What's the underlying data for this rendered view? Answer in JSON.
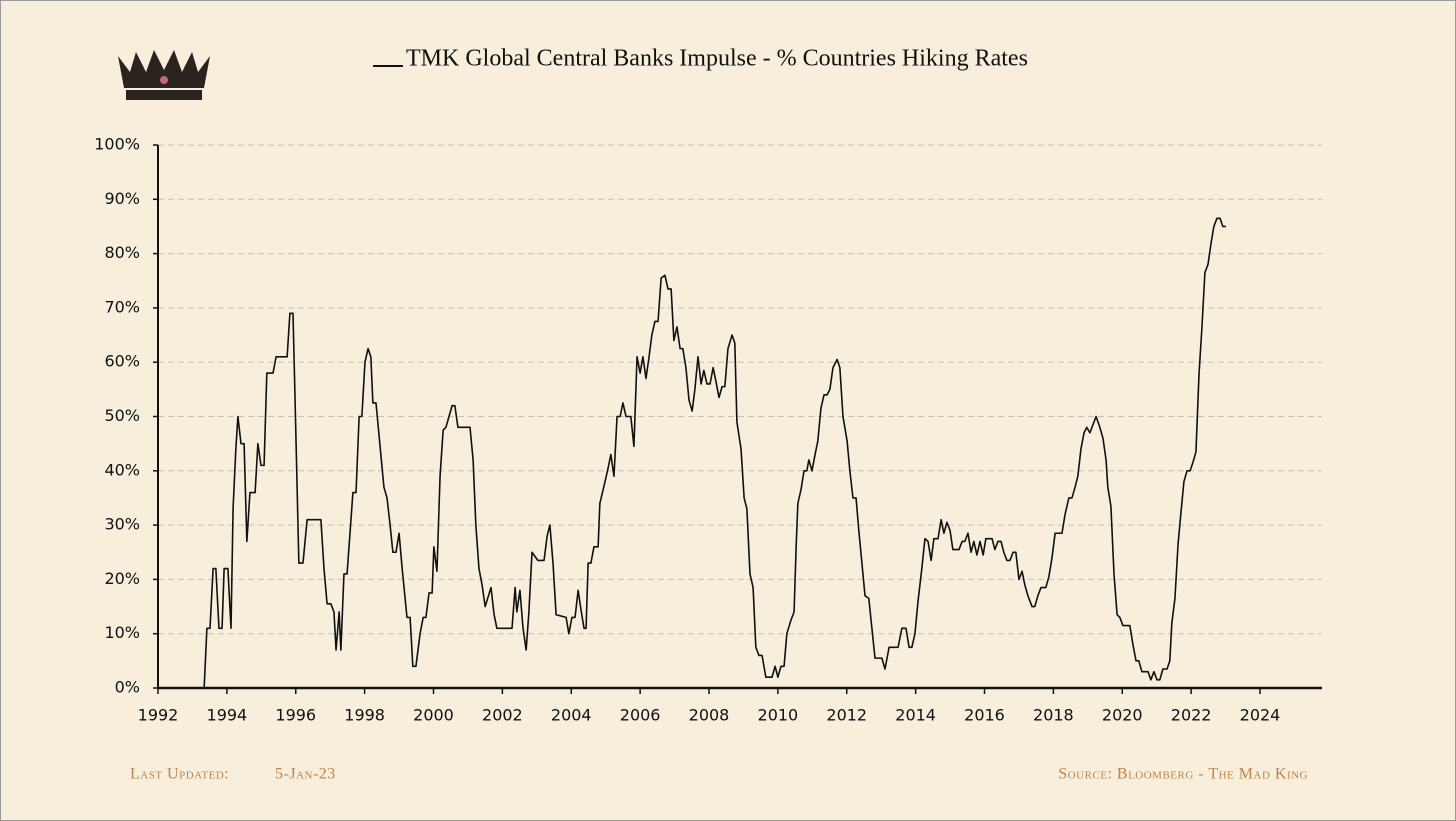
{
  "chart_data": {
    "type": "line",
    "title": "TMK Global Central Banks Impulse - % Countries Hiking Rates",
    "footer_left_label": "Last Updated:",
    "footer_left_value": "5-Jan-23",
    "footer_right": "Source: Bloomberg - The Mad King",
    "xlim": [
      1992,
      2025.8
    ],
    "xticks": [
      1992,
      1994,
      1996,
      1998,
      2000,
      2002,
      2004,
      2006,
      2008,
      2010,
      2012,
      2014,
      2016,
      2018,
      2020,
      2022,
      2024
    ],
    "ylim": [
      0,
      100
    ],
    "yticks": [
      {
        "value": 0,
        "label": "0%"
      },
      {
        "value": 10,
        "label": "10%"
      },
      {
        "value": 20,
        "label": "20%"
      },
      {
        "value": 30,
        "label": "30%"
      },
      {
        "value": 40,
        "label": "40%"
      },
      {
        "value": 50,
        "label": "50%"
      },
      {
        "value": 60,
        "label": "60%"
      },
      {
        "value": 70,
        "label": "70%"
      },
      {
        "value": 80,
        "label": "80%"
      },
      {
        "value": 90,
        "label": "90%"
      },
      {
        "value": 100,
        "label": "100%"
      }
    ],
    "grid": true,
    "x": [
      1993.34,
      1993.42,
      1993.51,
      1993.6,
      1993.68,
      1993.77,
      1993.86,
      1993.92,
      1994.03,
      1994.12,
      1994.18,
      1994.26,
      1994.32,
      1994.41,
      1994.5,
      1994.58,
      1994.67,
      1994.82,
      1994.9,
      1994.99,
      1995.08,
      1995.16,
      1995.34,
      1995.43,
      1995.75,
      1995.83,
      1995.92,
      1996.01,
      1996.09,
      1996.21,
      1996.33,
      1996.73,
      1996.82,
      1996.91,
      1997.02,
      1997.11,
      1997.17,
      1997.26,
      1997.31,
      1997.4,
      1997.49,
      1997.66,
      1997.75,
      1997.84,
      1997.92,
      1998.01,
      1998.1,
      1998.18,
      1998.24,
      1998.33,
      1998.56,
      1998.65,
      1998.74,
      1998.82,
      1998.91,
      1999,
      1999.09,
      1999.23,
      1999.32,
      1999.4,
      1999.49,
      1999.61,
      1999.7,
      1999.78,
      1999.87,
      1999.96,
      2000.01,
      2000.1,
      2000.19,
      2000.28,
      2000.36,
      2000.45,
      2000.54,
      2000.62,
      2000.71,
      2001.06,
      2001.15,
      2001.23,
      2001.32,
      2001.41,
      2001.5,
      2001.67,
      2001.76,
      2001.84,
      2002.28,
      2002.37,
      2002.42,
      2002.51,
      2002.6,
      2002.69,
      2002.77,
      2002.86,
      2003.03,
      2003.21,
      2003.3,
      2003.38,
      2003.47,
      2003.56,
      2003.85,
      2003.93,
      2004.02,
      2004.11,
      2004.2,
      2004.28,
      2004.37,
      2004.43,
      2004.49,
      2004.57,
      2004.66,
      2004.78,
      2004.83,
      2004.98,
      2005.07,
      2005.15,
      2005.24,
      2005.33,
      2005.42,
      2005.5,
      2005.59,
      2005.73,
      2005.82,
      2005.91,
      2006,
      2006.08,
      2006.17,
      2006.26,
      2006.34,
      2006.43,
      2006.52,
      2006.61,
      2006.72,
      2006.81,
      2006.9,
      2006.98,
      2007.07,
      2007.16,
      2007.24,
      2007.33,
      2007.42,
      2007.51,
      2007.59,
      2007.68,
      2007.77,
      2007.85,
      2007.94,
      2008.03,
      2008.12,
      2008.2,
      2008.29,
      2008.38,
      2008.46,
      2008.55,
      2008.67,
      2008.75,
      2008.81,
      2008.93,
      2009.02,
      2009.1,
      2009.19,
      2009.28,
      2009.36,
      2009.45,
      2009.54,
      2009.65,
      2009.83,
      2009.92,
      2010,
      2010.09,
      2010.18,
      2010.26,
      2010.38,
      2010.47,
      2010.53,
      2010.58,
      2010.67,
      2010.76,
      2010.84,
      2010.9,
      2010.99,
      2011.08,
      2011.16,
      2011.25,
      2011.34,
      2011.43,
      2011.51,
      2011.6,
      2011.72,
      2011.8,
      2011.89,
      2012.01,
      2012.09,
      2012.18,
      2012.27,
      2012.35,
      2012.44,
      2012.53,
      2012.64,
      2012.73,
      2012.82,
      2013.02,
      2013.11,
      2013.23,
      2013.49,
      2013.6,
      2013.72,
      2013.81,
      2013.89,
      2013.98,
      2014.07,
      2014.18,
      2014.27,
      2014.36,
      2014.45,
      2014.53,
      2014.65,
      2014.74,
      2014.82,
      2014.91,
      2015,
      2015.08,
      2015.26,
      2015.35,
      2015.43,
      2015.52,
      2015.61,
      2015.69,
      2015.78,
      2015.87,
      2015.96,
      2016.04,
      2016.22,
      2016.3,
      2016.39,
      2016.48,
      2016.56,
      2016.65,
      2016.74,
      2016.83,
      2016.91,
      2017,
      2017.09,
      2017.17,
      2017.26,
      2017.38,
      2017.46,
      2017.55,
      2017.64,
      2017.78,
      2017.87,
      2017.96,
      2018.05,
      2018.25,
      2018.34,
      2018.45,
      2018.54,
      2018.63,
      2018.71,
      2018.8,
      2018.89,
      2018.97,
      2019.06,
      2019.15,
      2019.24,
      2019.35,
      2019.44,
      2019.53,
      2019.58,
      2019.67,
      2019.76,
      2019.85,
      2019.93,
      2020.02,
      2020.22,
      2020.31,
      2020.4,
      2020.48,
      2020.57,
      2020.75,
      2020.83,
      2020.92,
      2021.01,
      2021.09,
      2021.18,
      2021.3,
      2021.38,
      2021.44,
      2021.53,
      2021.62,
      2021.7,
      2021.79,
      2021.88,
      2021.97,
      2022.05,
      2022.14,
      2022.23,
      2022.31,
      2022.4,
      2022.49,
      2022.58,
      2022.66,
      2022.75,
      2022.84,
      2022.92,
      2023.01
    ],
    "series": [
      {
        "name": "TMK Global Central Banks Impulse - % Countries Hiking Rates",
        "color": "#111111",
        "values": [
          0,
          11,
          11,
          22,
          22,
          11,
          11,
          22,
          22,
          11,
          33,
          44,
          50,
          45,
          45,
          27,
          36,
          36,
          45,
          41,
          41,
          58,
          58,
          61,
          61,
          69,
          69,
          45,
          23,
          23,
          31,
          31,
          22,
          15.5,
          15.5,
          14,
          7,
          14,
          7,
          21,
          21,
          36,
          36,
          50,
          50,
          60,
          62.5,
          61,
          52.5,
          52.5,
          37,
          35,
          30,
          25,
          25,
          28.5,
          22,
          13,
          13,
          4,
          4,
          10,
          13,
          13,
          17.5,
          17.5,
          26,
          21.5,
          39,
          47.5,
          48,
          50,
          52,
          52,
          48,
          48,
          42,
          30,
          22,
          19,
          15,
          18.5,
          13.5,
          11,
          11,
          18.5,
          14,
          18,
          11,
          7,
          14,
          25,
          23.5,
          23.5,
          28,
          30,
          23,
          13.5,
          13,
          10,
          13,
          13,
          18,
          14.5,
          11,
          11,
          23,
          23,
          26,
          26,
          34,
          38,
          40.5,
          43,
          39,
          50,
          50,
          52.5,
          50,
          50,
          44.5,
          61,
          58,
          61,
          57,
          61,
          65,
          67.5,
          67.5,
          75.5,
          76,
          73.5,
          73.5,
          64,
          66.5,
          62.5,
          62.5,
          59,
          53,
          51,
          55,
          61,
          56,
          58.5,
          56,
          56,
          59,
          56.5,
          53.5,
          55.5,
          55.5,
          62.5,
          65,
          63.5,
          49,
          44,
          35,
          33,
          21,
          18.5,
          7.5,
          6,
          6,
          2,
          2,
          4,
          2,
          4,
          4,
          10,
          12.5,
          14,
          26,
          34,
          36.5,
          40,
          40,
          42,
          40,
          43,
          45.5,
          51.5,
          54,
          54,
          55,
          59,
          60.5,
          59,
          50,
          45.5,
          40,
          35,
          35,
          29,
          23,
          17,
          16.5,
          11,
          5.5,
          5.5,
          3.5,
          7.5,
          7.5,
          11,
          11,
          7.5,
          7.5,
          10,
          16,
          22,
          27.5,
          27,
          23.5,
          27.5,
          27.5,
          31,
          28.5,
          30.5,
          29,
          25.5,
          25.5,
          27,
          27,
          28.5,
          25,
          27,
          24.5,
          27,
          24.5,
          27.5,
          27.5,
          25.5,
          27,
          27,
          25,
          23.5,
          23.5,
          25,
          25,
          20,
          21.5,
          19,
          17,
          15,
          15,
          17,
          18.5,
          18.5,
          20.5,
          24,
          28.5,
          28.5,
          32,
          35,
          35,
          37,
          39,
          44,
          47,
          48,
          47,
          48.5,
          50,
          48,
          46,
          42,
          37,
          33.5,
          21,
          13.5,
          13,
          11.5,
          11.5,
          8,
          5,
          5,
          3,
          3,
          1.5,
          3,
          1.5,
          1.5,
          3.5,
          3.5,
          5,
          12,
          16.5,
          26.5,
          32,
          38,
          40,
          40,
          41.5,
          43.5,
          58,
          66,
          76.5,
          78,
          82,
          85,
          86.5,
          86.5,
          85,
          85
        ]
      }
    ]
  }
}
